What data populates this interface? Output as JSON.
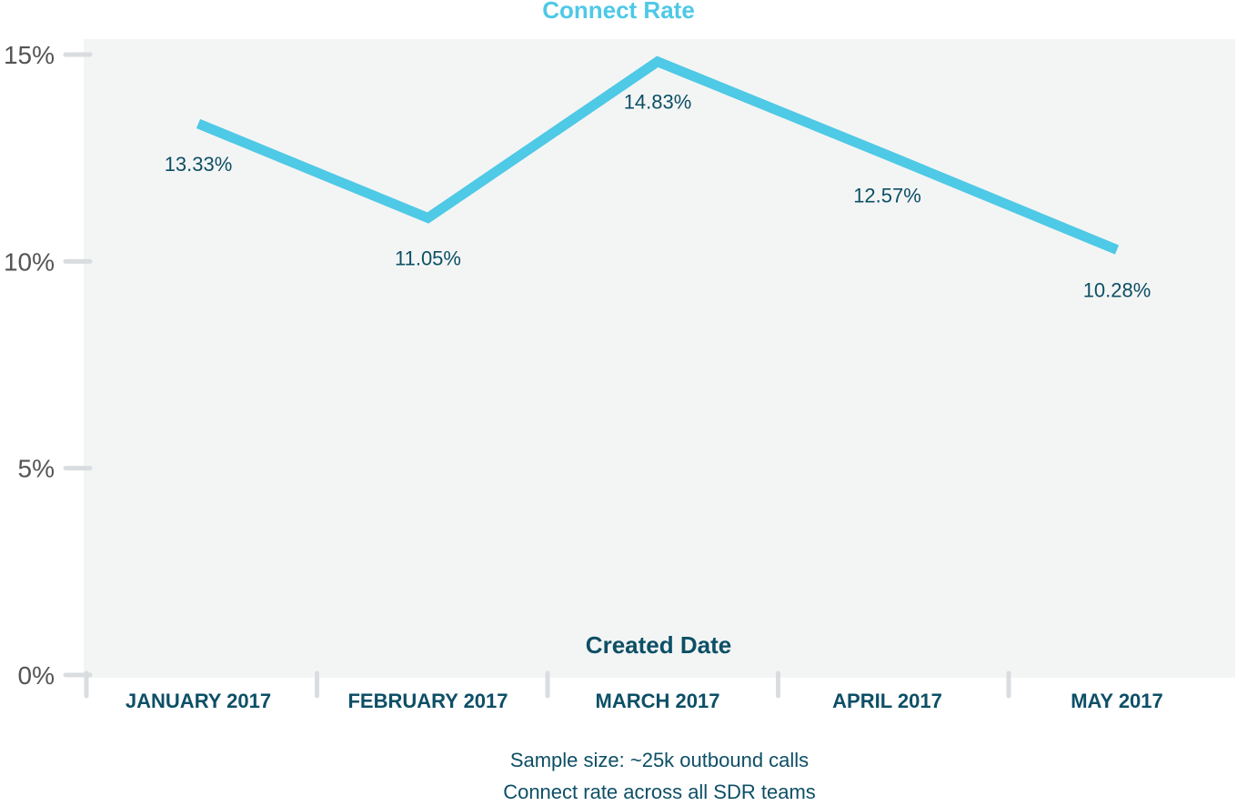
{
  "chart_data": {
    "type": "line",
    "title": "Connect Rate",
    "xlabel": "Created Date",
    "ylabel": "",
    "categories": [
      "JANUARY 2017",
      "FEBRUARY 2017",
      "MARCH 2017",
      "APRIL 2017",
      "MAY 2017"
    ],
    "series": [
      {
        "name": "Connect Rate",
        "values": [
          13.33,
          11.05,
          14.83,
          12.57,
          10.28
        ],
        "labels": [
          "13.33%",
          "11.05%",
          "14.83%",
          "12.57%",
          "10.28%"
        ]
      }
    ],
    "ylim": [
      0,
      15
    ],
    "yticks": [
      0,
      5,
      10,
      15
    ],
    "ytick_labels": [
      "0%",
      "5%",
      "10%",
      "15%"
    ],
    "grid": false,
    "colors": {
      "line": "#4ec9e6",
      "plot_background": "#f3f5f4",
      "text_dark": "#0d4f66",
      "axis_text": "#555555",
      "tick_marks": "#d9dde0"
    }
  },
  "notes": [
    "Sample size: ~25k outbound calls",
    "Connect rate across all SDR teams"
  ]
}
